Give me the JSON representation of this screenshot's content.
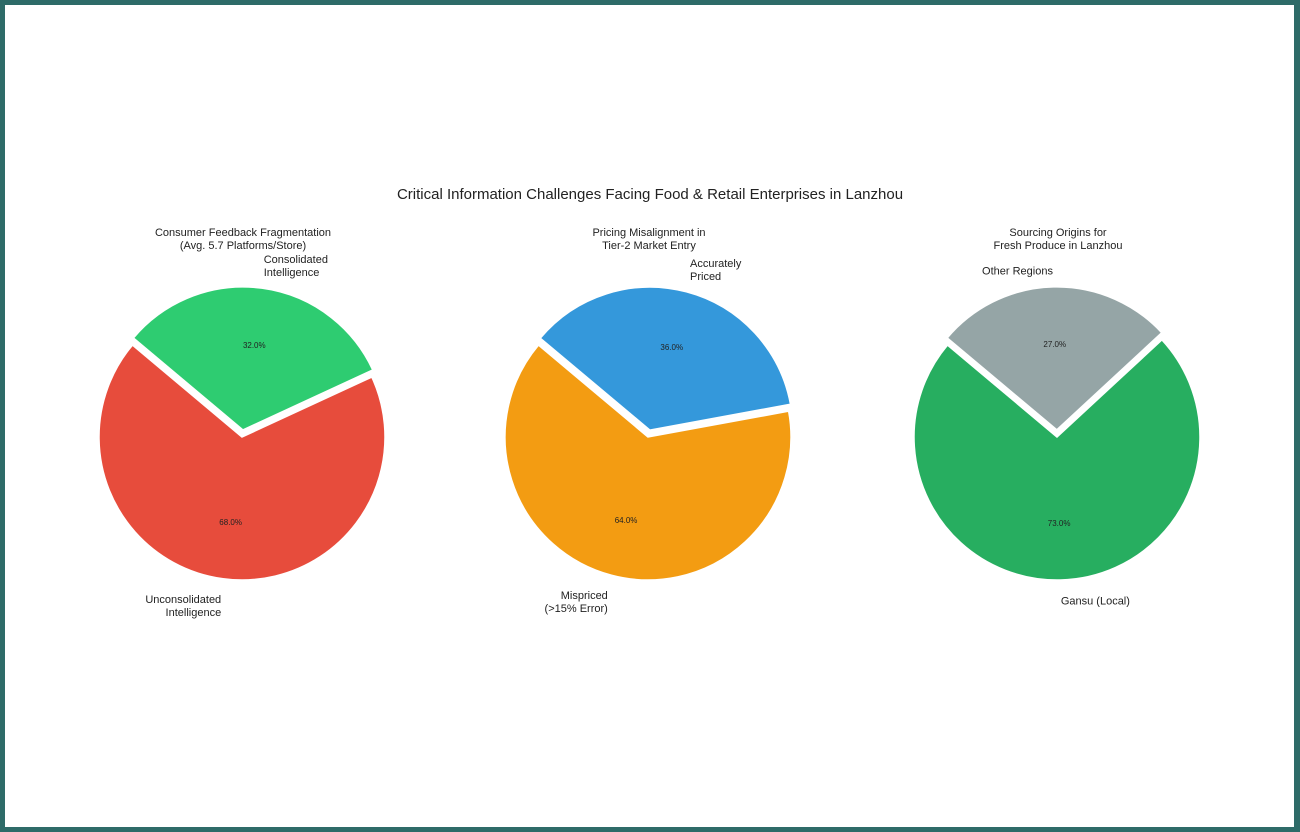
{
  "figure": {
    "title": "Critical Information Challenges Facing Food & Retail Enterprises in Lanzhou",
    "border_color": "#2e6b68",
    "background": "#ffffff"
  },
  "chart_data": [
    {
      "type": "pie",
      "title": "Consumer Feedback Fragmentation\n(Avg. 5.7 Platforms/Store)",
      "labels": [
        "Unconsolidated\nIntelligence",
        "Consolidated\nIntelligence"
      ],
      "values": [
        68,
        32
      ],
      "percent_labels": [
        "68.0%",
        "32.0%"
      ],
      "colors": [
        "#e74c3c",
        "#2ecc71"
      ],
      "explode": [
        0,
        0.05
      ],
      "startangle": 140
    },
    {
      "type": "pie",
      "title": "Pricing Misalignment in\nTier-2 Market Entry",
      "labels": [
        "Mispriced\n(>15% Error)",
        "Accurately\nPriced"
      ],
      "values": [
        64,
        36
      ],
      "percent_labels": [
        "64.0%",
        "36.0%"
      ],
      "colors": [
        "#f39c12",
        "#3498db"
      ],
      "explode": [
        0,
        0.05
      ],
      "startangle": 140
    },
    {
      "type": "pie",
      "title": "Sourcing Origins for\nFresh Produce in Lanzhou",
      "labels": [
        "Gansu (Local)",
        "Other Regions"
      ],
      "values": [
        73,
        27
      ],
      "percent_labels": [
        "73.0%",
        "27.0%"
      ],
      "colors": [
        "#27ae60",
        "#95a5a6"
      ],
      "explode": [
        0,
        0.05
      ],
      "startangle": 140
    }
  ]
}
